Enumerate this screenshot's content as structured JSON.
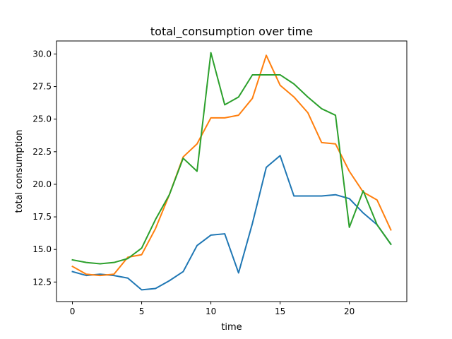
{
  "chart_data": {
    "type": "line",
    "title": "total_consumption over time",
    "xlabel": "time",
    "ylabel": "total consumption",
    "xlim": [
      -1.15,
      24.15
    ],
    "ylim": [
      11.0,
      31.0
    ],
    "x_ticks": [
      0,
      5,
      10,
      15,
      20
    ],
    "x_tick_labels": [
      "0",
      "5",
      "10",
      "15",
      "20"
    ],
    "y_ticks": [
      12.5,
      15.0,
      17.5,
      20.0,
      22.5,
      25.0,
      27.5,
      30.0
    ],
    "y_tick_labels": [
      "12.5",
      "15.0",
      "17.5",
      "20.0",
      "22.5",
      "25.0",
      "27.5",
      "30.0"
    ],
    "grid": false,
    "legend": false,
    "x": [
      0,
      1,
      2,
      3,
      4,
      5,
      6,
      7,
      8,
      9,
      10,
      11,
      12,
      13,
      14,
      15,
      16,
      17,
      18,
      19,
      20,
      21,
      22,
      23
    ],
    "series": [
      {
        "color": "#1f77b4",
        "values": [
          13.3,
          13.0,
          13.1,
          13.0,
          12.8,
          11.9,
          12.0,
          12.6,
          13.3,
          15.3,
          16.1,
          16.2,
          13.2,
          17.0,
          21.3,
          22.2,
          19.1,
          19.1,
          19.1,
          19.2,
          18.9,
          17.8,
          16.9,
          15.4
        ]
      },
      {
        "color": "#ff7f0e",
        "values": [
          13.7,
          13.1,
          13.0,
          13.1,
          14.4,
          14.6,
          16.6,
          19.2,
          22.1,
          23.1,
          25.1,
          25.1,
          25.3,
          26.6,
          29.9,
          27.6,
          26.7,
          25.5,
          23.2,
          23.1,
          21.0,
          19.4,
          18.8,
          16.5
        ]
      },
      {
        "color": "#2ca02c",
        "values": [
          14.2,
          14.0,
          13.9,
          14.0,
          14.3,
          15.1,
          17.3,
          19.2,
          22.0,
          21.0,
          30.1,
          26.1,
          26.7,
          28.4,
          28.4,
          28.4,
          27.7,
          26.7,
          25.8,
          25.3,
          16.7,
          19.5,
          16.9,
          15.4
        ]
      }
    ]
  }
}
